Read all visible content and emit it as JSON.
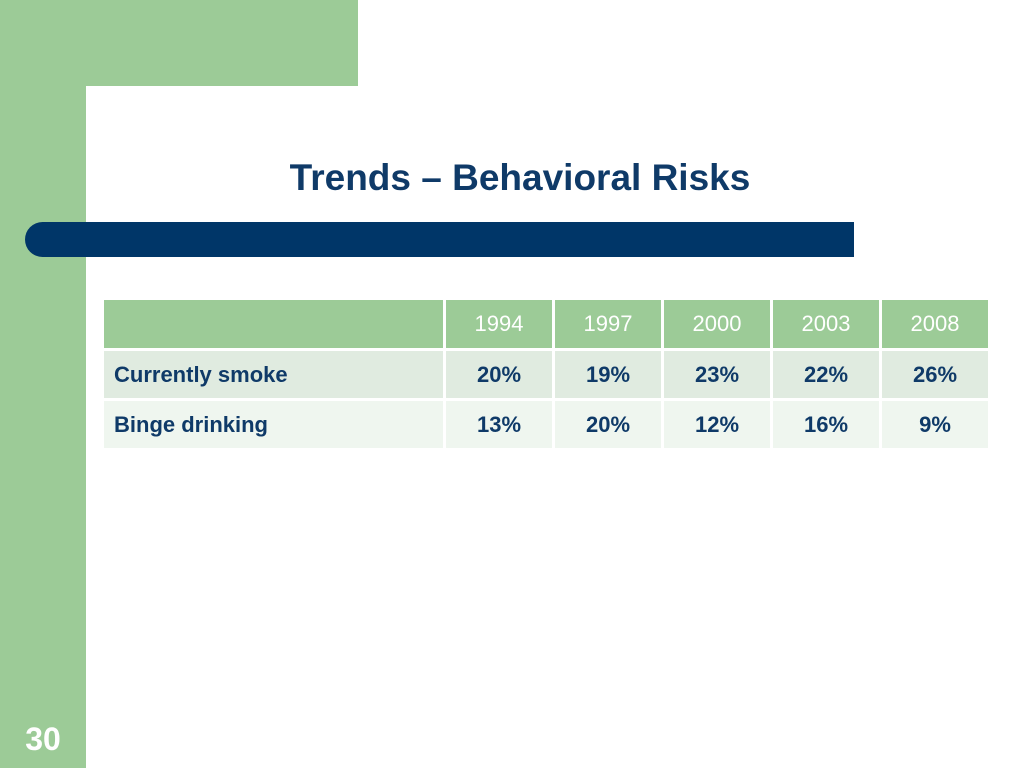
{
  "slide": {
    "title": "Trends – Behavioral Risks",
    "number": "30"
  },
  "table": {
    "corner": "",
    "columns": [
      "1994",
      "1997",
      "2000",
      "2003",
      "2008"
    ],
    "rows": [
      {
        "label": "Currently smoke",
        "values": [
          "20%",
          "19%",
          "23%",
          "22%",
          "26%"
        ]
      },
      {
        "label": "Binge drinking",
        "values": [
          "13%",
          "20%",
          "12%",
          "16%",
          "9%"
        ]
      }
    ]
  },
  "colors": {
    "accent_green": "#9ccb97",
    "title_navy": "#0f3a68",
    "bar_navy": "#003668"
  }
}
